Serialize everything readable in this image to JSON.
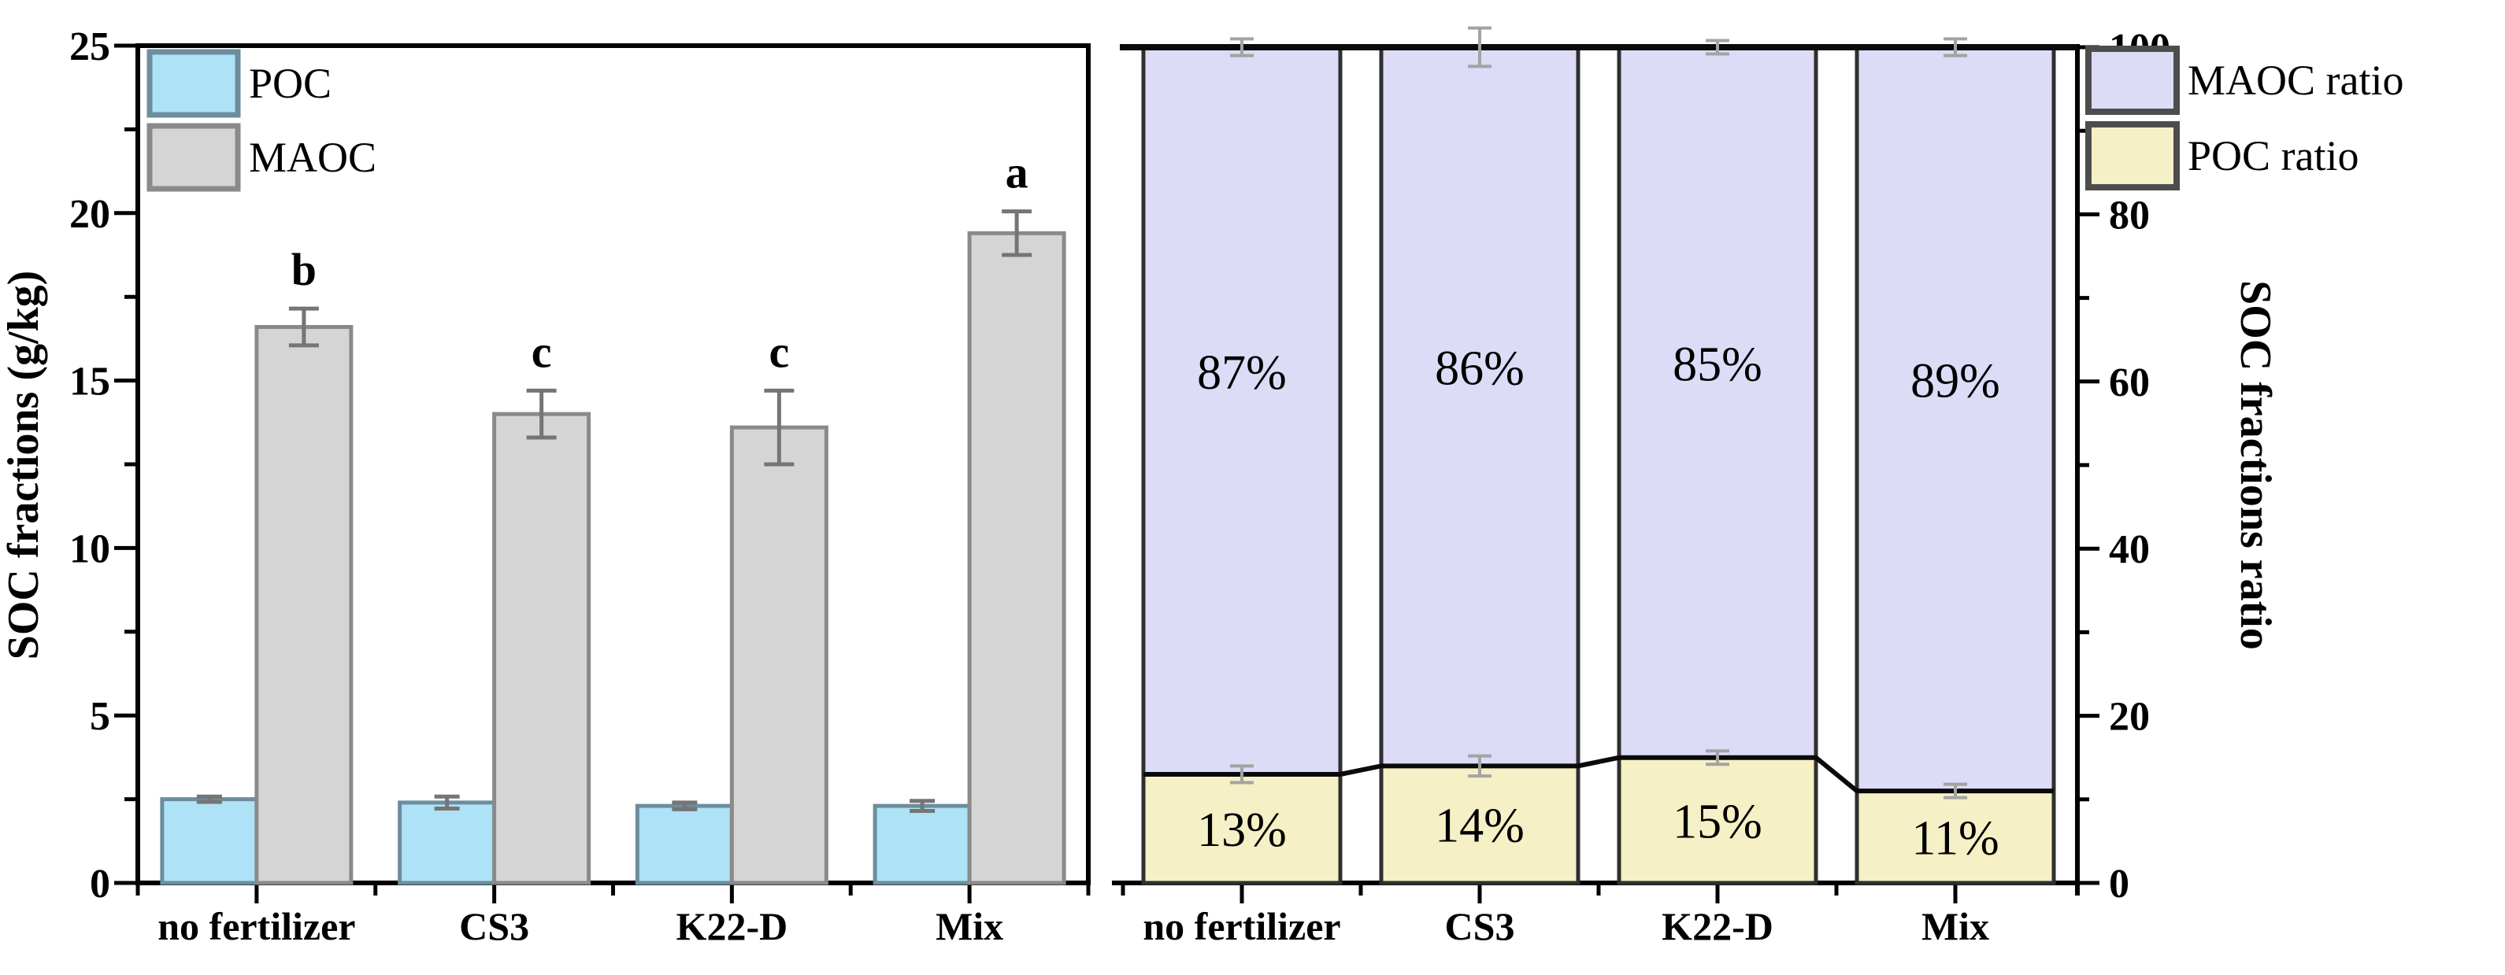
{
  "page": {
    "background": "#ffffff"
  },
  "chart_data": [
    {
      "type": "bar",
      "panel": "left",
      "title": "",
      "ylabel": "SOC fractions (g/kg)",
      "xlabel": "",
      "ylim": [
        0,
        25
      ],
      "ytick_values": [
        0,
        5,
        10,
        15,
        20,
        25
      ],
      "ytick_labels": [
        "0",
        "5",
        "10",
        "15",
        "20",
        "25"
      ],
      "yminor_values": [
        2.5,
        7.5,
        12.5,
        17.5,
        22.5
      ],
      "categories": [
        "no fertilizer",
        "CS3",
        "K22-D",
        "Mix"
      ],
      "series": [
        {
          "name": "POC",
          "fill": "#ade2f7",
          "edge": "#6d8d9d",
          "values": [
            2.5,
            2.4,
            2.3,
            2.3
          ],
          "errors": [
            0.08,
            0.18,
            0.1,
            0.15
          ]
        },
        {
          "name": "MAOC",
          "fill": "#d5d5d5",
          "edge": "#8a8a8a",
          "values": [
            16.6,
            14.0,
            13.6,
            19.4
          ],
          "errors": [
            0.55,
            0.7,
            1.1,
            0.65
          ]
        }
      ],
      "sig_letters": [
        "b",
        "c",
        "c",
        "a"
      ],
      "legend": [
        {
          "label": "POC",
          "fill": "#ade2f7",
          "edge": "#6d8d9d"
        },
        {
          "label": "MAOC",
          "fill": "#d5d5d5",
          "edge": "#8a8a8a"
        }
      ],
      "error_bar_color": "#757575",
      "grid": false,
      "legend_position": "top-left-inside"
    },
    {
      "type": "bar",
      "panel": "right",
      "title": "",
      "ylabel": "SOC fractions ratio",
      "xlabel": "",
      "stacked": true,
      "ylim": [
        0,
        100
      ],
      "ytick_values": [
        0,
        20,
        40,
        60,
        80,
        100
      ],
      "ytick_labels": [
        "0",
        "20",
        "40",
        "60",
        "80",
        "100"
      ],
      "yminor_values": [
        10,
        30,
        50,
        70,
        90
      ],
      "categories": [
        "no fertilizer",
        "CS3",
        "K22-D",
        "Mix"
      ],
      "series": [
        {
          "name": "POC ratio",
          "fill": "#f5f0c5",
          "edge": "#2f2f2f",
          "values": [
            13,
            14,
            15,
            11
          ],
          "labels": [
            "13%",
            "14%",
            "15%",
            "11%"
          ],
          "errors": [
            1.0,
            1.2,
            0.8,
            0.8
          ]
        },
        {
          "name": "MAOC ratio",
          "fill": "#dcdcf7",
          "edge": "#2f2f2f",
          "values": [
            87,
            86,
            85,
            89
          ],
          "labels": [
            "87%",
            "86%",
            "85%",
            "89%"
          ],
          "errors": [
            1.0,
            2.3,
            0.8,
            1.0
          ]
        }
      ],
      "legend": [
        {
          "label": "MAOC ratio",
          "fill": "#dcdcf7",
          "edge": "#4d4d4d"
        },
        {
          "label": "POC ratio",
          "fill": "#f5f0c5",
          "edge": "#4d4d4d"
        }
      ],
      "error_bar_color": "#a3a3a3",
      "connector_line_color": "#0a0a0a",
      "grid": false,
      "legend_position": "top-right-outside"
    }
  ]
}
